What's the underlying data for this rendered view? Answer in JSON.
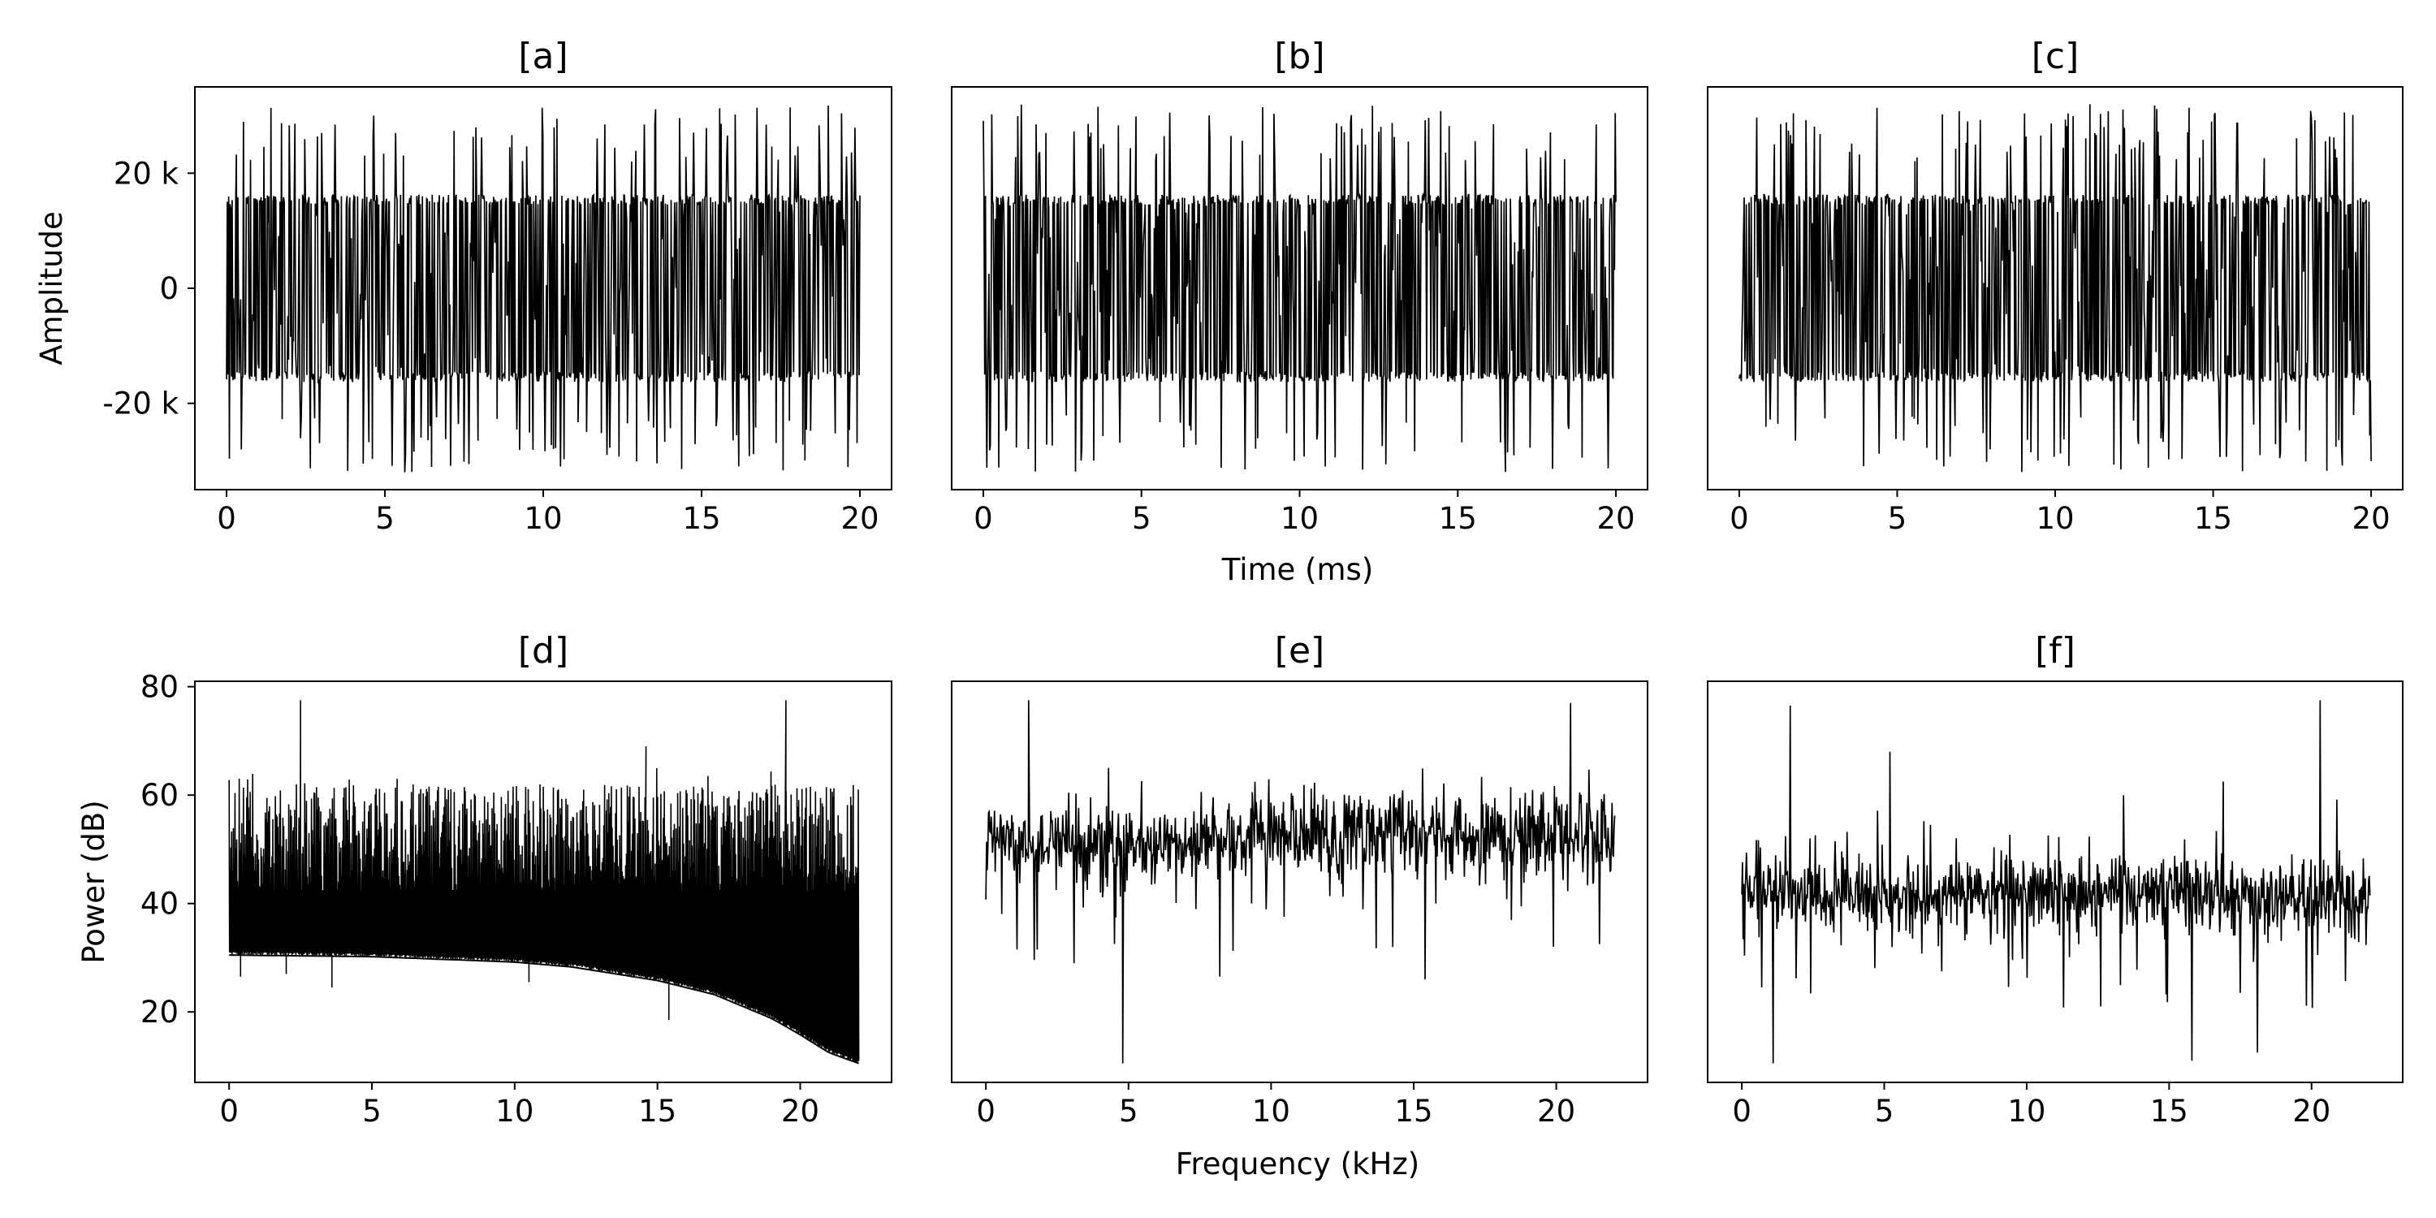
{
  "figure": {
    "time_xlabel": "Time (ms)",
    "freq_xlabel": "Frequency (kHz)",
    "amplitude_ylabel": "Amplitude",
    "power_ylabel": "Power (dB)"
  },
  "chart_data": [
    {
      "type": "line",
      "title": "[a]",
      "panel": "a",
      "xlabel": "",
      "ylabel": "Amplitude",
      "xlim": [
        -1,
        21
      ],
      "ylim": [
        -35000,
        35000
      ],
      "xticks": [
        0,
        5,
        10,
        15,
        20
      ],
      "xtick_labels": [
        "0",
        "5",
        "10",
        "15",
        "20"
      ],
      "yticks": [
        -20000,
        0,
        20000
      ],
      "ytick_labels": [
        "-20 k",
        "0",
        "20 k"
      ],
      "x_range": [
        0,
        20
      ],
      "n_points": 900,
      "signal": "dense noise-like waveform, bulk within ±16 k, spikes to ±32 k",
      "series": [
        {
          "color": "#000000"
        }
      ]
    },
    {
      "type": "line",
      "title": "[b]",
      "panel": "b",
      "xlabel": "Time (ms)",
      "ylabel": "",
      "xlim": [
        -1,
        21
      ],
      "ylim": [
        -35000,
        35000
      ],
      "xticks": [
        0,
        5,
        10,
        15,
        20
      ],
      "xtick_labels": [
        "0",
        "5",
        "10",
        "15",
        "20"
      ],
      "x_range": [
        0,
        20
      ],
      "n_points": 900,
      "signal": "dense noise-like waveform, bulk within ±16 k, spikes to ±32 k",
      "series": [
        {
          "color": "#000000"
        }
      ]
    },
    {
      "type": "line",
      "title": "[c]",
      "panel": "c",
      "xlabel": "",
      "ylabel": "",
      "xlim": [
        -1,
        21
      ],
      "ylim": [
        -35000,
        35000
      ],
      "xticks": [
        0,
        5,
        10,
        15,
        20
      ],
      "xtick_labels": [
        "0",
        "5",
        "10",
        "15",
        "20"
      ],
      "x_range": [
        0,
        20
      ],
      "n_points": 900,
      "signal": "dense noise-like waveform, bulk within ±16 k, spikes to ±32 k",
      "series": [
        {
          "color": "#000000"
        }
      ]
    },
    {
      "type": "line",
      "title": "[d]",
      "panel": "d",
      "xlabel": "",
      "ylabel": "Power (dB)",
      "xlim": [
        -1.2,
        23.2
      ],
      "ylim": [
        7,
        81
      ],
      "xticks": [
        0,
        5,
        10,
        15,
        20
      ],
      "xtick_labels": [
        "0",
        "5",
        "10",
        "15",
        "20"
      ],
      "yticks": [
        20,
        40,
        60,
        80
      ],
      "ytick_labels": [
        "20",
        "40",
        "60",
        "80"
      ],
      "x_range": [
        0,
        22.05
      ],
      "floor_curve": {
        "x": [
          0,
          5,
          10,
          12,
          15,
          17,
          19,
          20,
          21,
          22.05
        ],
        "y": [
          30.5,
          30.2,
          29.2,
          28.3,
          25.8,
          23.2,
          18.8,
          15.8,
          12.5,
          10.5
        ]
      },
      "noise_band": [
        42,
        62
      ],
      "peaks": [
        {
          "x": 2.5,
          "y": 77.5
        },
        {
          "x": 19.5,
          "y": 77.5
        },
        {
          "x": 14.6,
          "y": 69
        }
      ],
      "dips": [
        {
          "x": 0.4,
          "y": 26.5
        },
        {
          "x": 2,
          "y": 27
        },
        {
          "x": 3.6,
          "y": 24.5
        },
        {
          "x": 10.5,
          "y": 25.5
        },
        {
          "x": 15.4,
          "y": 18.5
        }
      ],
      "series": [
        {
          "color": "#000000"
        }
      ]
    },
    {
      "type": "line",
      "title": "[e]",
      "panel": "e",
      "xlabel": "Frequency (kHz)",
      "ylabel": "",
      "xlim": [
        -1.2,
        23.2
      ],
      "ylim": [
        7,
        81
      ],
      "xticks": [
        0,
        5,
        10,
        15,
        20
      ],
      "xtick_labels": [
        "0",
        "5",
        "10",
        "15",
        "20"
      ],
      "x_range": [
        0,
        22.05
      ],
      "n_points": 950,
      "baseline": [
        {
          "x": 0,
          "y": 51
        },
        {
          "x": 5,
          "y": 50
        },
        {
          "x": 10,
          "y": 52.5
        },
        {
          "x": 15,
          "y": 53
        },
        {
          "x": 22.05,
          "y": 52
        }
      ],
      "peaks": [
        {
          "x": 1.5,
          "y": 77.5
        },
        {
          "x": 20.5,
          "y": 77
        },
        {
          "x": 4.3,
          "y": 65
        }
      ],
      "dips": [
        {
          "x": 4.8,
          "y": 10.5
        },
        {
          "x": 1.8,
          "y": 31.5
        },
        {
          "x": 8.2,
          "y": 26.5
        },
        {
          "x": 15.4,
          "y": 26
        },
        {
          "x": 19.9,
          "y": 32
        }
      ],
      "series": [
        {
          "color": "#000000"
        }
      ]
    },
    {
      "type": "line",
      "title": "[f]",
      "panel": "f",
      "xlabel": "",
      "ylabel": "",
      "xlim": [
        -1.2,
        23.2
      ],
      "ylim": [
        7,
        81
      ],
      "xticks": [
        0,
        5,
        10,
        15,
        20
      ],
      "xtick_labels": [
        "0",
        "5",
        "10",
        "15",
        "20"
      ],
      "x_range": [
        0,
        22.05
      ],
      "n_points": 950,
      "baseline": [
        {
          "x": 0,
          "y": 42
        },
        {
          "x": 5,
          "y": 41.5
        },
        {
          "x": 10,
          "y": 42
        },
        {
          "x": 15,
          "y": 41.5
        },
        {
          "x": 22.05,
          "y": 41
        }
      ],
      "peaks": [
        {
          "x": 1.7,
          "y": 76.5
        },
        {
          "x": 20.3,
          "y": 77.5
        },
        {
          "x": 5.2,
          "y": 68
        },
        {
          "x": 16.9,
          "y": 62.5
        },
        {
          "x": 13.4,
          "y": 60
        }
      ],
      "dips": [
        {
          "x": 1.1,
          "y": 10.5
        },
        {
          "x": 15.8,
          "y": 11
        },
        {
          "x": 18.1,
          "y": 12.5
        },
        {
          "x": 12.6,
          "y": 21
        }
      ],
      "series": [
        {
          "color": "#000000"
        }
      ]
    }
  ]
}
